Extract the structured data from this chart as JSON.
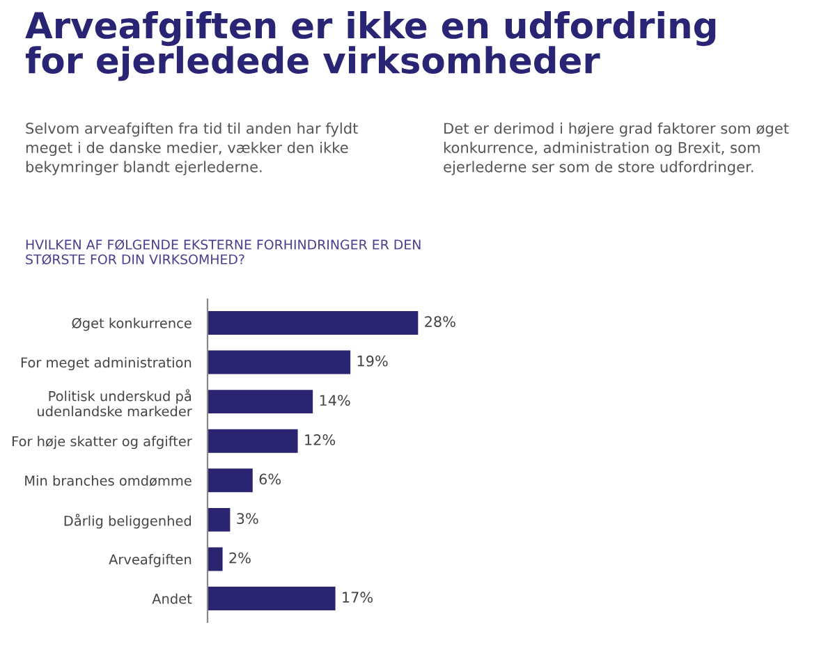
{
  "chart_data": {
    "type": "bar",
    "orientation": "horizontal",
    "title": "Arveafgiften er ikke en udfordring\nfor ejerledede virksomheder",
    "subtitle": "HVILKEN AF FØLGENDE EKSTERNE FORHINDRINGER ER DEN\nSTØRSTE FOR DIN VIRKSOMHED?",
    "annotations": [
      "Selvom arveafgiften fra tid til anden har fyldt\nmeget i de danske medier, vækker den ikke\nbekymringer blandt ejerlederne.",
      "Det er derimod i højere grad faktorer som øget\nkonkurrence, administration og Brexit, som\nejerlederne ser som de store udfordringer."
    ],
    "categories": [
      "Øget konkurrence",
      "For meget administration",
      "Politisk underskud på\nudenlandske markeder",
      "For høje skatter og afgifter",
      "Min branches omdømme",
      "Dårlig beliggenhed",
      "Arveafgiften",
      "Andet"
    ],
    "values": [
      28,
      19,
      14,
      12,
      6,
      3,
      2,
      17
    ],
    "value_labels": [
      "28%",
      "19%",
      "14%",
      "12%",
      "6%",
      "3%",
      "2%",
      "17%"
    ],
    "color": "#2b2470",
    "grid": false,
    "legend": false
  }
}
